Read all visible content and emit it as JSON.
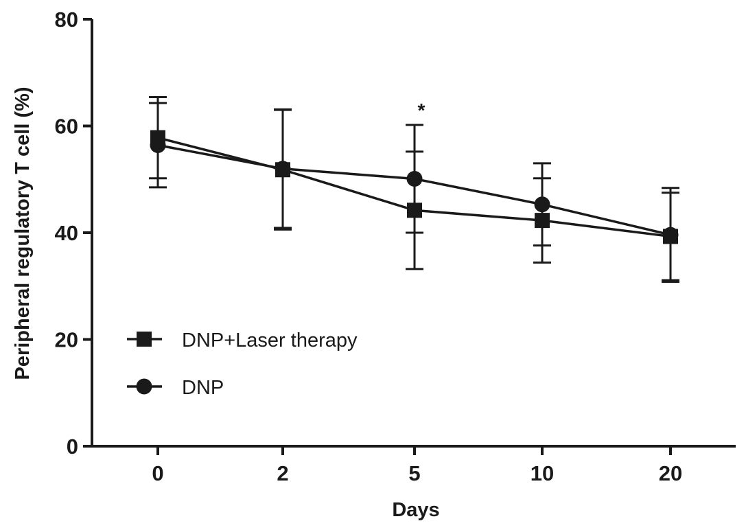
{
  "chart_data": {
    "type": "line",
    "title": "",
    "xlabel": "Days",
    "ylabel": "Peripheral regulatory T cell (%)",
    "categories": [
      "0",
      "2",
      "5",
      "10",
      "20"
    ],
    "ylim": [
      0,
      80
    ],
    "yticks": [
      "0",
      "20",
      "40",
      "60",
      "80"
    ],
    "grid": false,
    "legend_position": "bottom-left",
    "series": [
      {
        "name": "DNP+Laser therapy",
        "marker": "square",
        "values": [
          57.8,
          51.8,
          44.2,
          42.3,
          39.3
        ],
        "error": [
          7.6,
          11.2,
          11.0,
          7.9,
          8.2
        ]
      },
      {
        "name": "DNP",
        "marker": "circle",
        "values": [
          56.4,
          52.0,
          50.1,
          45.3,
          39.6
        ],
        "error": [
          7.9,
          11.1,
          10.1,
          7.7,
          8.8
        ]
      }
    ],
    "annotations": [
      {
        "text": "*",
        "category": "5",
        "series": "DNP"
      }
    ],
    "colors": {
      "line": "#1a1a1a",
      "background": "#ffffff"
    }
  }
}
